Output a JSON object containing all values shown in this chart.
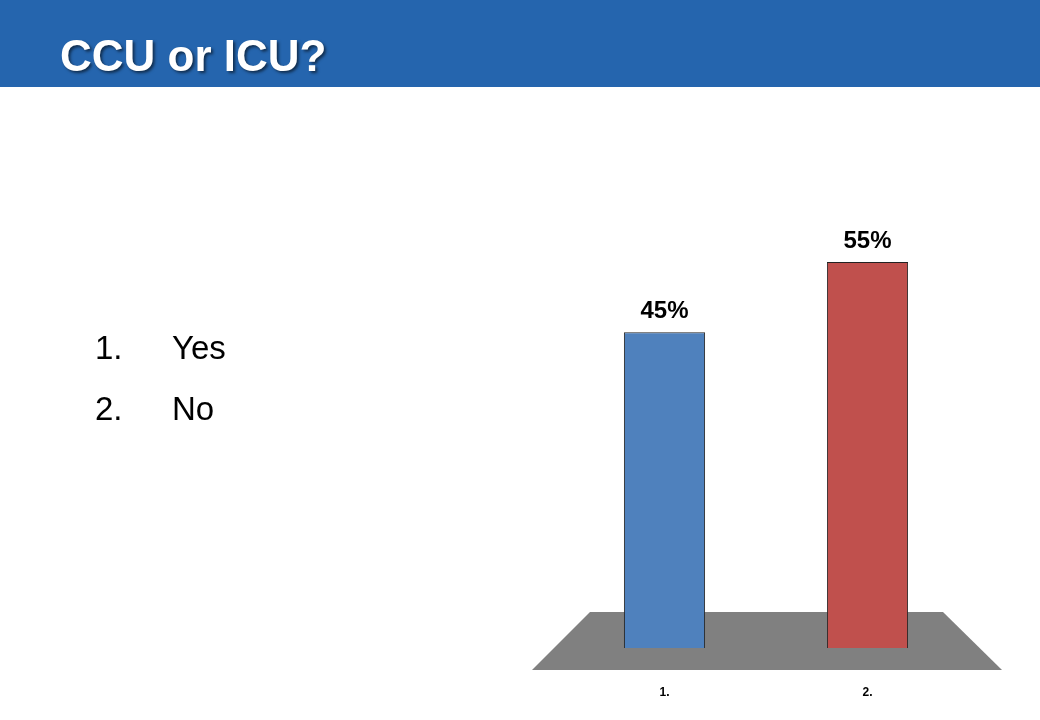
{
  "chart_data": {
    "type": "bar",
    "title": "CCU or ICU?",
    "categories": [
      "1.",
      "2."
    ],
    "values": [
      45,
      55
    ],
    "colors": [
      "#4f81bd",
      "#c0504d"
    ],
    "value_labels": [
      "45%",
      "55%"
    ],
    "tick_labels": "x",
    "annotations": [
      "1.\tYes",
      "2.\tNo"
    ]
  }
}
